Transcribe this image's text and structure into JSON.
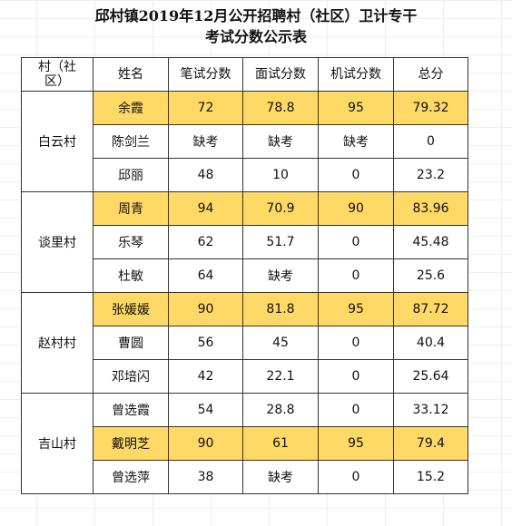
{
  "title_line1": "邱村镇2019年12月公开招聘村（社区）卫计专干",
  "title_line2": "考试分数公示表",
  "headers": {
    "village_a": "村（社",
    "village_b": "区）",
    "name": "姓名",
    "written": "笔试分数",
    "interview": "面试分数",
    "computer": "机试分数",
    "total": "总分"
  },
  "highlight_color": "#ffd966",
  "groups": [
    {
      "village": "白云村",
      "rows": [
        {
          "name": "余霞",
          "written": "72",
          "interview": "78.8",
          "computer": "95",
          "total": "79.32",
          "highlight": true
        },
        {
          "name": "陈剑兰",
          "written": "缺考",
          "interview": "缺考",
          "computer": "缺考",
          "total": "0",
          "highlight": false
        },
        {
          "name": "邱丽",
          "written": "48",
          "interview": "10",
          "computer": "0",
          "total": "23.2",
          "highlight": false
        }
      ]
    },
    {
      "village": "谈里村",
      "rows": [
        {
          "name": "周青",
          "written": "94",
          "interview": "70.9",
          "computer": "90",
          "total": "83.96",
          "highlight": true
        },
        {
          "name": "乐琴",
          "written": "62",
          "interview": "51.7",
          "computer": "0",
          "total": "45.48",
          "highlight": false
        },
        {
          "name": "杜敏",
          "written": "64",
          "interview": "缺考",
          "computer": "0",
          "total": "25.6",
          "highlight": false
        }
      ]
    },
    {
      "village": "赵村村",
      "rows": [
        {
          "name": "张媛媛",
          "written": "90",
          "interview": "81.8",
          "computer": "95",
          "total": "87.72",
          "highlight": true
        },
        {
          "name": "曹圆",
          "written": "56",
          "interview": "45",
          "computer": "0",
          "total": "40.4",
          "highlight": false
        },
        {
          "name": "邓培闪",
          "written": "42",
          "interview": "22.1",
          "computer": "0",
          "total": "25.64",
          "highlight": false
        }
      ]
    },
    {
      "village": "吉山村",
      "rows": [
        {
          "name": "曾选霞",
          "written": "54",
          "interview": "28.8",
          "computer": "0",
          "total": "33.12",
          "highlight": false
        },
        {
          "name": "戴明芝",
          "written": "90",
          "interview": "61",
          "computer": "95",
          "total": "79.4",
          "highlight": true
        },
        {
          "name": "曾选萍",
          "written": "38",
          "interview": "缺考",
          "computer": "0",
          "total": "15.2",
          "highlight": false
        }
      ]
    }
  ]
}
